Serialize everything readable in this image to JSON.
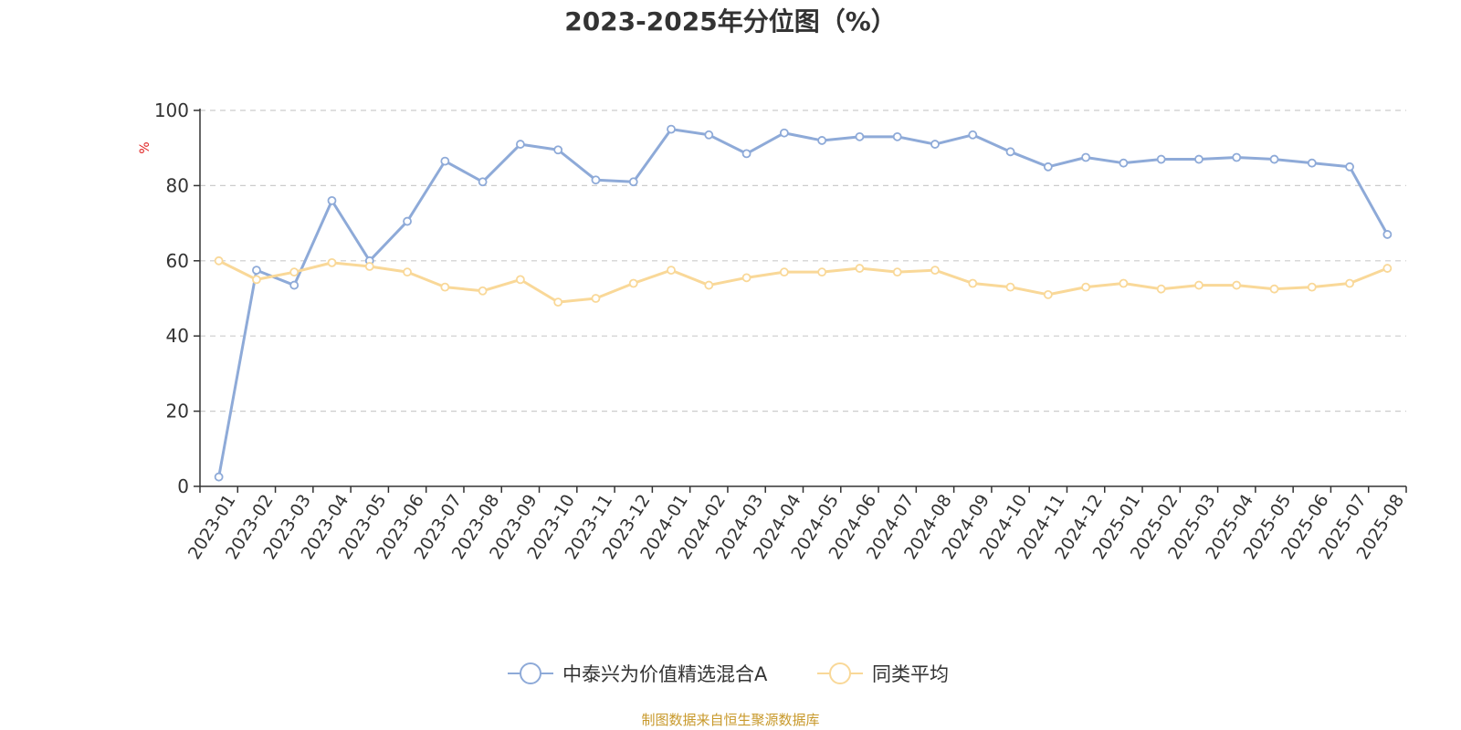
{
  "chart_data": {
    "type": "line",
    "title": "2023-2025年分位图（%）",
    "ylabel": "%",
    "ylim": [
      0,
      100
    ],
    "yticks": [
      0,
      20,
      40,
      60,
      80,
      100
    ],
    "grid": "horizontal-dashed",
    "legend_position": "bottom-center",
    "categories": [
      "2023-01",
      "2023-02",
      "2023-03",
      "2023-04",
      "2023-05",
      "2023-06",
      "2023-07",
      "2023-08",
      "2023-09",
      "2023-10",
      "2023-11",
      "2023-12",
      "2024-01",
      "2024-02",
      "2024-03",
      "2024-04",
      "2024-05",
      "2024-06",
      "2024-07",
      "2024-08",
      "2024-09",
      "2024-10",
      "2024-11",
      "2024-12",
      "2025-01",
      "2025-02",
      "2025-03",
      "2025-04",
      "2025-05",
      "2025-06",
      "2025-07",
      "2025-08"
    ],
    "series": [
      {
        "name": "中泰兴为价值精选混合A",
        "color": "#8eaad8",
        "values": [
          2.5,
          57.5,
          53.5,
          76,
          60,
          70.5,
          86.5,
          81,
          91,
          89.5,
          81.5,
          81,
          95,
          93.5,
          88.5,
          94,
          92,
          93,
          93,
          91,
          93.5,
          89,
          85,
          87.5,
          86,
          87,
          87,
          87.5,
          87,
          86,
          85,
          67
        ]
      },
      {
        "name": "同类平均",
        "color": "#f9d898",
        "values": [
          60,
          55,
          57,
          59.5,
          58.5,
          57,
          53,
          52,
          55,
          49,
          50,
          54,
          57.5,
          53.5,
          55.5,
          57,
          57,
          58,
          57,
          57.5,
          54,
          53,
          51,
          53,
          54,
          52.5,
          53.5,
          53.5,
          52.5,
          53,
          54,
          58
        ]
      }
    ],
    "source_note": "制图数据来自恒生聚源数据库"
  }
}
